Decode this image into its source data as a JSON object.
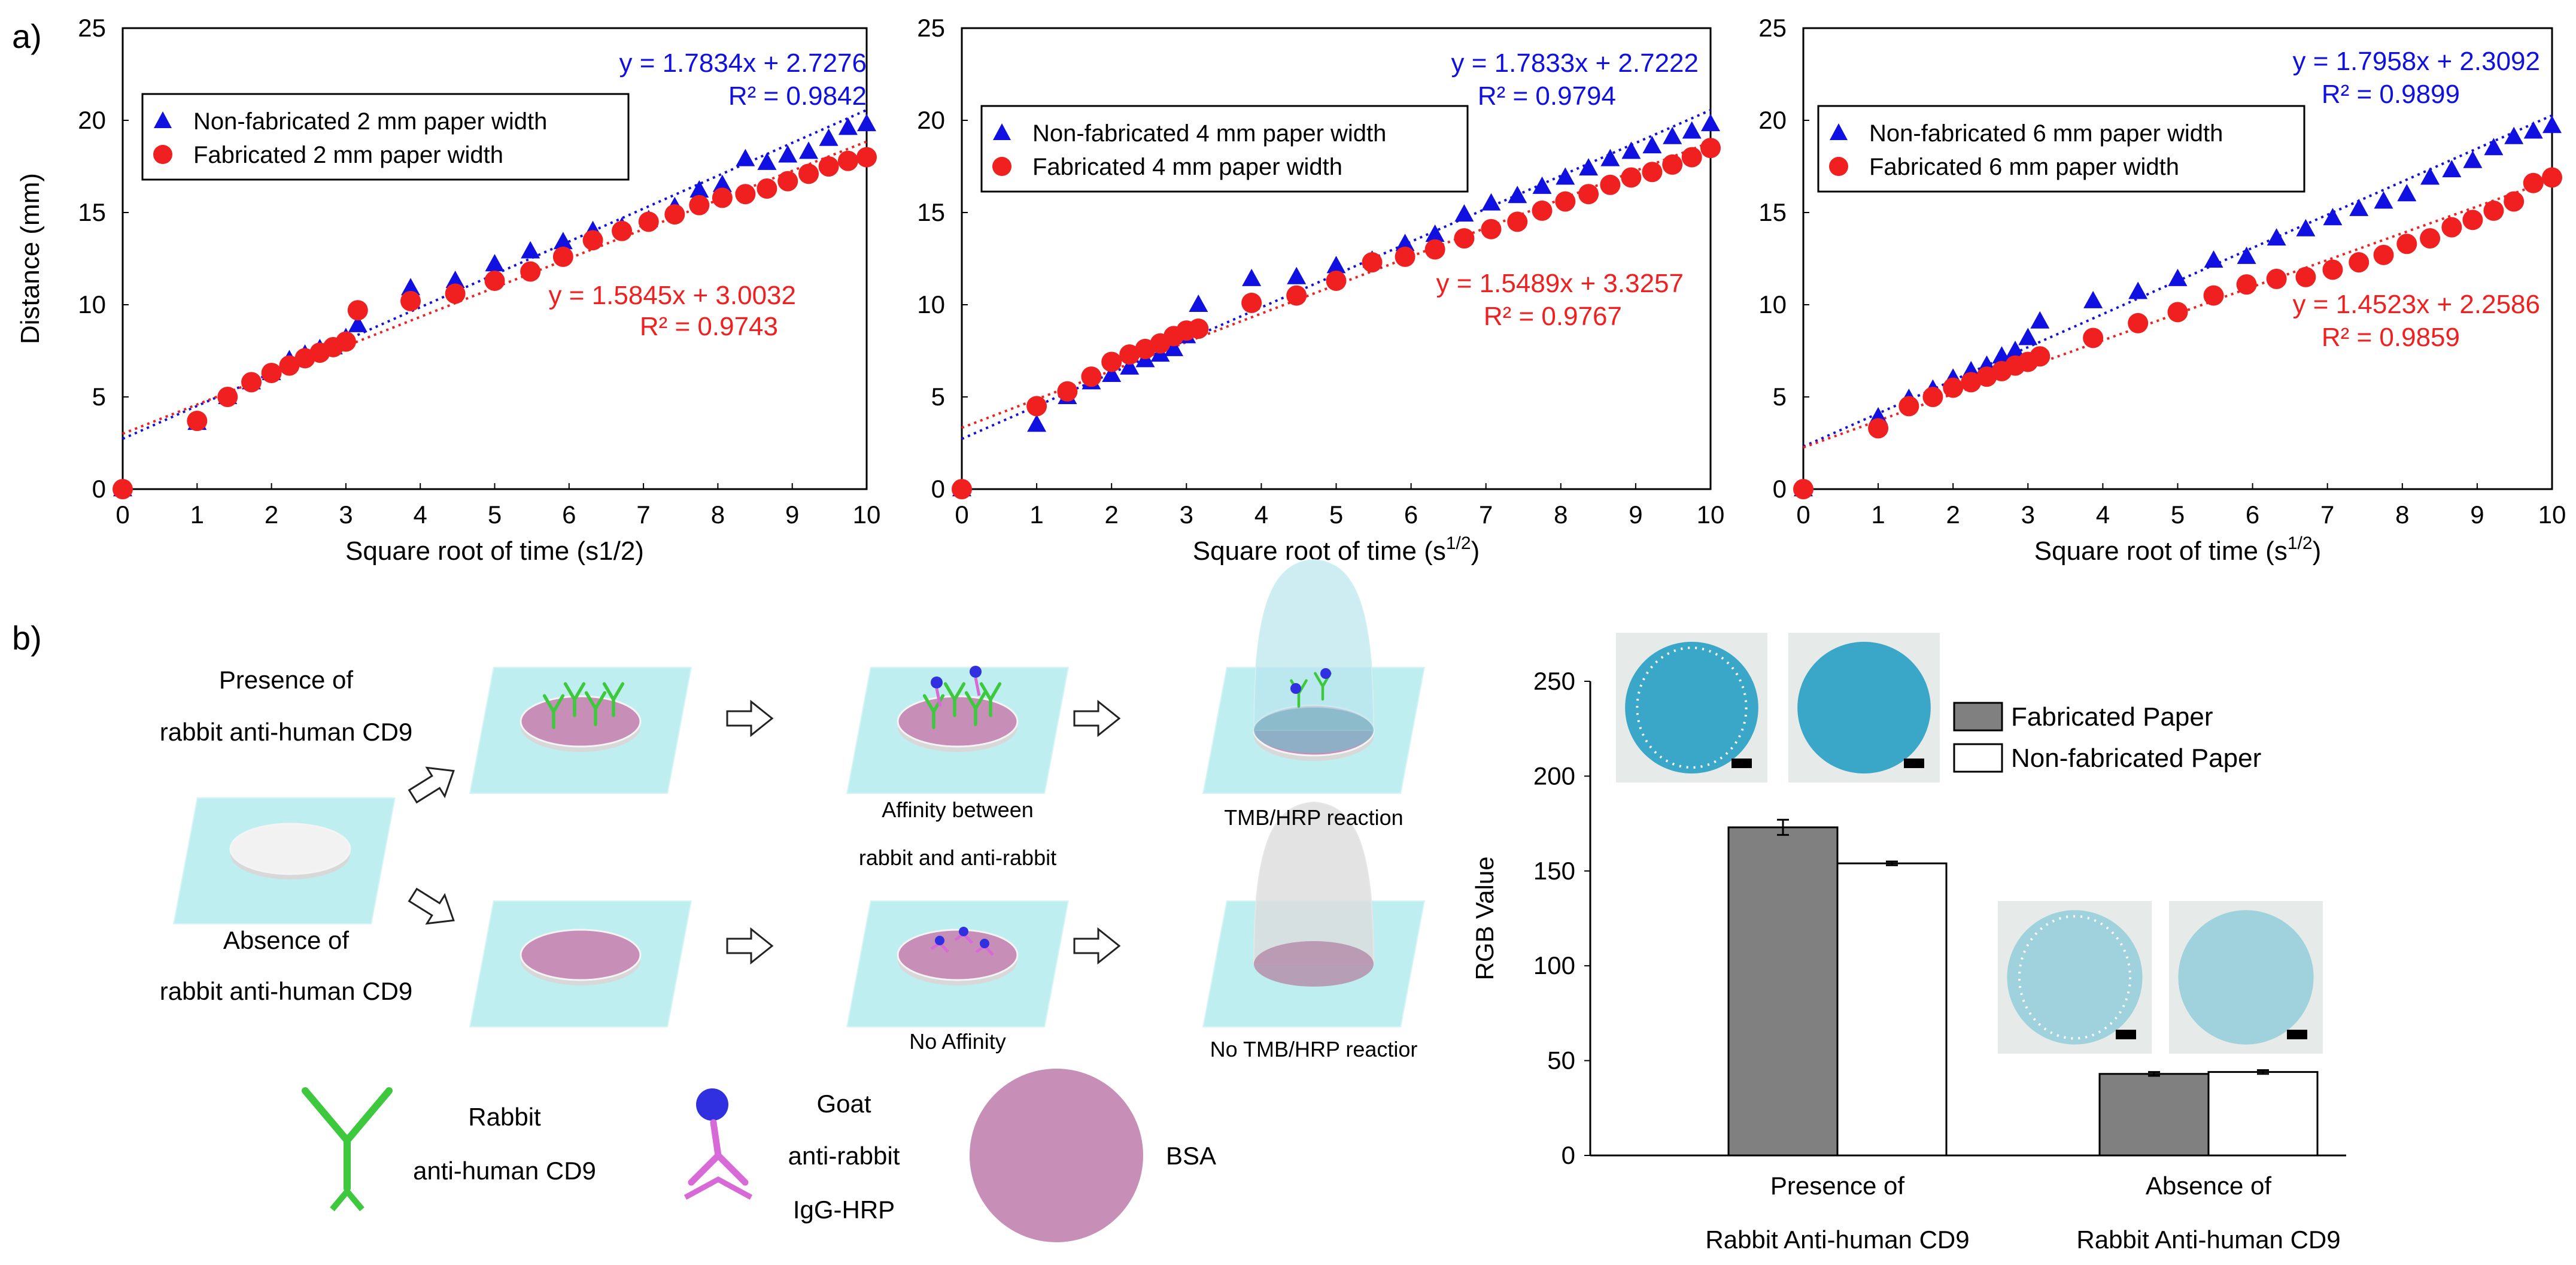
{
  "panel_a_label": "a)",
  "panel_b_label": "b)",
  "chart_data": [
    {
      "type": "scatter",
      "xlabel": "Square root of time (s1/2)",
      "xlabel_sup": "",
      "ylabel": "Distance (mm)",
      "xlim": [
        0,
        10
      ],
      "ylim": [
        0,
        25
      ],
      "xticks": [
        "0",
        "1",
        "2",
        "3",
        "4",
        "5",
        "6",
        "7",
        "8",
        "9",
        "10"
      ],
      "yticks": [
        "0",
        "5",
        "10",
        "15",
        "20",
        "25"
      ],
      "legend_position": "top-left",
      "series": [
        {
          "name": "Non-fabricated 2 mm paper width",
          "marker": "triangle",
          "color": "#1010e0",
          "x": [
            0,
            1,
            1.41,
            1.73,
            2,
            2.24,
            2.45,
            2.65,
            2.83,
            3,
            3.16,
            3.87,
            4.47,
            5,
            5.48,
            5.92,
            6.32,
            6.71,
            7.07,
            7.42,
            7.75,
            8.06,
            8.37,
            8.66,
            8.94,
            9.22,
            9.49,
            9.75,
            10
          ],
          "y": [
            0,
            3.6,
            5.0,
            5.8,
            6.3,
            7.0,
            7.3,
            7.6,
            7.7,
            8.2,
            8.9,
            10.9,
            11.3,
            12.2,
            12.9,
            13.4,
            14.0,
            14.2,
            14.6,
            15.3,
            16.2,
            16.5,
            17.9,
            17.7,
            18.1,
            18.3,
            19.0,
            19.6,
            19.8
          ],
          "trend_label": "y = 1.7834x + 2.7276",
          "r2_label": "R² = 0.9842",
          "slope": 1.7834,
          "intercept": 2.7276
        },
        {
          "name": "Fabricated 2 mm paper width",
          "marker": "circle",
          "color": "#f02020",
          "x": [
            0,
            1,
            1.41,
            1.73,
            2,
            2.24,
            2.45,
            2.65,
            2.83,
            3,
            3.16,
            3.87,
            4.47,
            5,
            5.48,
            5.92,
            6.32,
            6.71,
            7.07,
            7.42,
            7.75,
            8.06,
            8.37,
            8.66,
            8.94,
            9.22,
            9.49,
            9.75,
            10
          ],
          "y": [
            0,
            3.7,
            5.0,
            5.8,
            6.3,
            6.7,
            7.1,
            7.4,
            7.7,
            8.0,
            9.7,
            10.2,
            10.6,
            11.3,
            11.8,
            12.6,
            13.5,
            14.0,
            14.5,
            14.9,
            15.4,
            15.8,
            16.0,
            16.3,
            16.7,
            17.1,
            17.5,
            17.8,
            18.0
          ],
          "trend_label": "y = 1.5845x + 3.0032",
          "r2_label": "R² = 0.9743",
          "slope": 1.5845,
          "intercept": 3.0032
        }
      ]
    },
    {
      "type": "scatter",
      "xlabel": "Square root of time (s",
      "xlabel_sup": "1/2",
      "ylabel": "",
      "xlim": [
        0,
        10
      ],
      "ylim": [
        0,
        25
      ],
      "xticks": [
        "0",
        "1",
        "2",
        "3",
        "4",
        "5",
        "6",
        "7",
        "8",
        "9",
        "10"
      ],
      "yticks": [
        "0",
        "5",
        "10",
        "15",
        "20",
        "25"
      ],
      "legend_position": "top-left",
      "series": [
        {
          "name": "Non-fabricated 4 mm paper width",
          "marker": "triangle",
          "color": "#1010e0",
          "x": [
            0,
            1,
            1.41,
            1.73,
            2,
            2.24,
            2.45,
            2.65,
            2.83,
            3,
            3.16,
            3.87,
            4.47,
            5,
            5.48,
            5.92,
            6.32,
            6.71,
            7.07,
            7.42,
            7.75,
            8.06,
            8.37,
            8.66,
            8.94,
            9.22,
            9.49,
            9.75,
            10
          ],
          "y": [
            0,
            3.5,
            5.0,
            5.8,
            6.2,
            6.6,
            7.0,
            7.3,
            7.6,
            8.3,
            10.0,
            11.4,
            11.5,
            12.1,
            12.4,
            13.3,
            13.8,
            14.9,
            15.5,
            15.9,
            16.4,
            16.9,
            17.4,
            17.9,
            18.3,
            18.6,
            19.1,
            19.4,
            19.8
          ],
          "trend_label": "y = 1.7833x + 2.7222",
          "r2_label": "R² = 0.9794",
          "slope": 1.7833,
          "intercept": 2.7222
        },
        {
          "name": "Fabricated 4 mm paper width",
          "marker": "circle",
          "color": "#f02020",
          "x": [
            0,
            1,
            1.41,
            1.73,
            2,
            2.24,
            2.45,
            2.65,
            2.83,
            3,
            3.16,
            3.87,
            4.47,
            5,
            5.48,
            5.92,
            6.32,
            6.71,
            7.07,
            7.42,
            7.75,
            8.06,
            8.37,
            8.66,
            8.94,
            9.22,
            9.49,
            9.75,
            10
          ],
          "y": [
            0,
            4.5,
            5.3,
            6.1,
            6.9,
            7.3,
            7.6,
            7.9,
            8.3,
            8.6,
            8.7,
            10.1,
            10.5,
            11.3,
            12.3,
            12.6,
            13.0,
            13.6,
            14.1,
            14.5,
            15.1,
            15.6,
            16.0,
            16.5,
            16.9,
            17.2,
            17.6,
            18.0,
            18.5
          ],
          "trend_label": "y = 1.5489x + 3.3257",
          "r2_label": "R² = 0.9767",
          "slope": 1.5489,
          "intercept": 3.3257
        }
      ]
    },
    {
      "type": "scatter",
      "xlabel": "Square root of time (s",
      "xlabel_sup": "1/2",
      "ylabel": "",
      "xlim": [
        0,
        10
      ],
      "ylim": [
        0,
        25
      ],
      "xticks": [
        "0",
        "1",
        "2",
        "3",
        "4",
        "5",
        "6",
        "7",
        "8",
        "9",
        "10"
      ],
      "yticks": [
        "0",
        "5",
        "10",
        "15",
        "20",
        "25"
      ],
      "legend_position": "top-left",
      "series": [
        {
          "name": "Non-fabricated 6 mm paper width",
          "marker": "triangle",
          "color": "#1010e0",
          "x": [
            0,
            1,
            1.41,
            1.73,
            2,
            2.24,
            2.45,
            2.65,
            2.83,
            3,
            3.16,
            3.87,
            4.47,
            5,
            5.48,
            5.92,
            6.32,
            6.71,
            7.07,
            7.42,
            7.75,
            8.06,
            8.37,
            8.66,
            8.94,
            9.22,
            9.49,
            9.75,
            10
          ],
          "y": [
            0,
            3.9,
            4.9,
            5.4,
            6.0,
            6.4,
            6.7,
            7.2,
            7.5,
            8.2,
            9.1,
            10.2,
            10.7,
            11.4,
            12.4,
            12.6,
            13.6,
            14.1,
            14.7,
            15.2,
            15.6,
            16.0,
            16.9,
            17.3,
            17.8,
            18.5,
            19.1,
            19.4,
            19.7
          ],
          "trend_label": "y = 1.7958x + 2.3092",
          "r2_label": "R² = 0.9899",
          "slope": 1.7958,
          "intercept": 2.3092
        },
        {
          "name": "Fabricated 6 mm paper width",
          "marker": "circle",
          "color": "#f02020",
          "x": [
            0,
            1,
            1.41,
            1.73,
            2,
            2.24,
            2.45,
            2.65,
            2.83,
            3,
            3.16,
            3.87,
            4.47,
            5,
            5.48,
            5.92,
            6.32,
            6.71,
            7.07,
            7.42,
            7.75,
            8.06,
            8.37,
            8.66,
            8.94,
            9.22,
            9.49,
            9.75,
            10
          ],
          "y": [
            0,
            3.3,
            4.5,
            5.0,
            5.5,
            5.8,
            6.1,
            6.4,
            6.7,
            6.9,
            7.2,
            8.2,
            9.0,
            9.6,
            10.5,
            11.1,
            11.4,
            11.5,
            11.9,
            12.3,
            12.7,
            13.3,
            13.6,
            14.2,
            14.6,
            15.1,
            15.6,
            16.6,
            16.9
          ],
          "trend_label": "y = 1.4523x + 2.2586",
          "r2_label": "R² = 0.9859",
          "slope": 1.4523,
          "intercept": 2.2586
        }
      ]
    },
    {
      "type": "bar",
      "title": "",
      "ylabel": "RGB Value",
      "ylim": [
        0,
        250
      ],
      "yticks": [
        "0",
        "50",
        "100",
        "150",
        "200",
        "250"
      ],
      "categories": [
        {
          "line1": "Presence of",
          "line2": "Rabbit Anti-human CD9"
        },
        {
          "line1": "Absence of",
          "line2": "Rabbit Anti-human CD9"
        }
      ],
      "legend_position": "top-right",
      "series": [
        {
          "name": "Fabricated Paper",
          "color": "#808080",
          "values": [
            173,
            43
          ],
          "errors": [
            4,
            1
          ]
        },
        {
          "name": "Non-fabricated Paper",
          "color": "#ffffff",
          "values": [
            154,
            44
          ],
          "errors": [
            1,
            1
          ]
        }
      ]
    }
  ],
  "schematic": {
    "presence_line1": "Presence of",
    "presence_line2": "rabbit anti-human CD9",
    "absence_line1": "Absence of",
    "absence_line2": "rabbit anti-human CD9",
    "affinity_line1": "Affinity between",
    "affinity_line2": "rabbit and anti-rabbit",
    "tmb_reaction": "TMB/HRP reaction",
    "no_affinity": "No Affinity",
    "no_tmb_reaction": "No TMB/HRP reactior",
    "legend_rabbit_line1": "Rabbit",
    "legend_rabbit_line2": "anti-human CD9",
    "legend_goat_line1": "Goat",
    "legend_goat_line2": "anti-rabbit",
    "legend_goat_line3": "IgG-HRP",
    "legend_bsa": "BSA",
    "colors": {
      "paper": "#bfeef0",
      "bsa": "#c78fb8",
      "rabbit_antibody": "#3ec83e",
      "goat_antibody": "#d86ad8",
      "hrp": "#3030e0",
      "dome_blue": "#b8e6ec",
      "dome_grey": "#dcdcdc",
      "well_blue": "#3aa7c8",
      "well_pale": "#9fd2dc"
    }
  }
}
